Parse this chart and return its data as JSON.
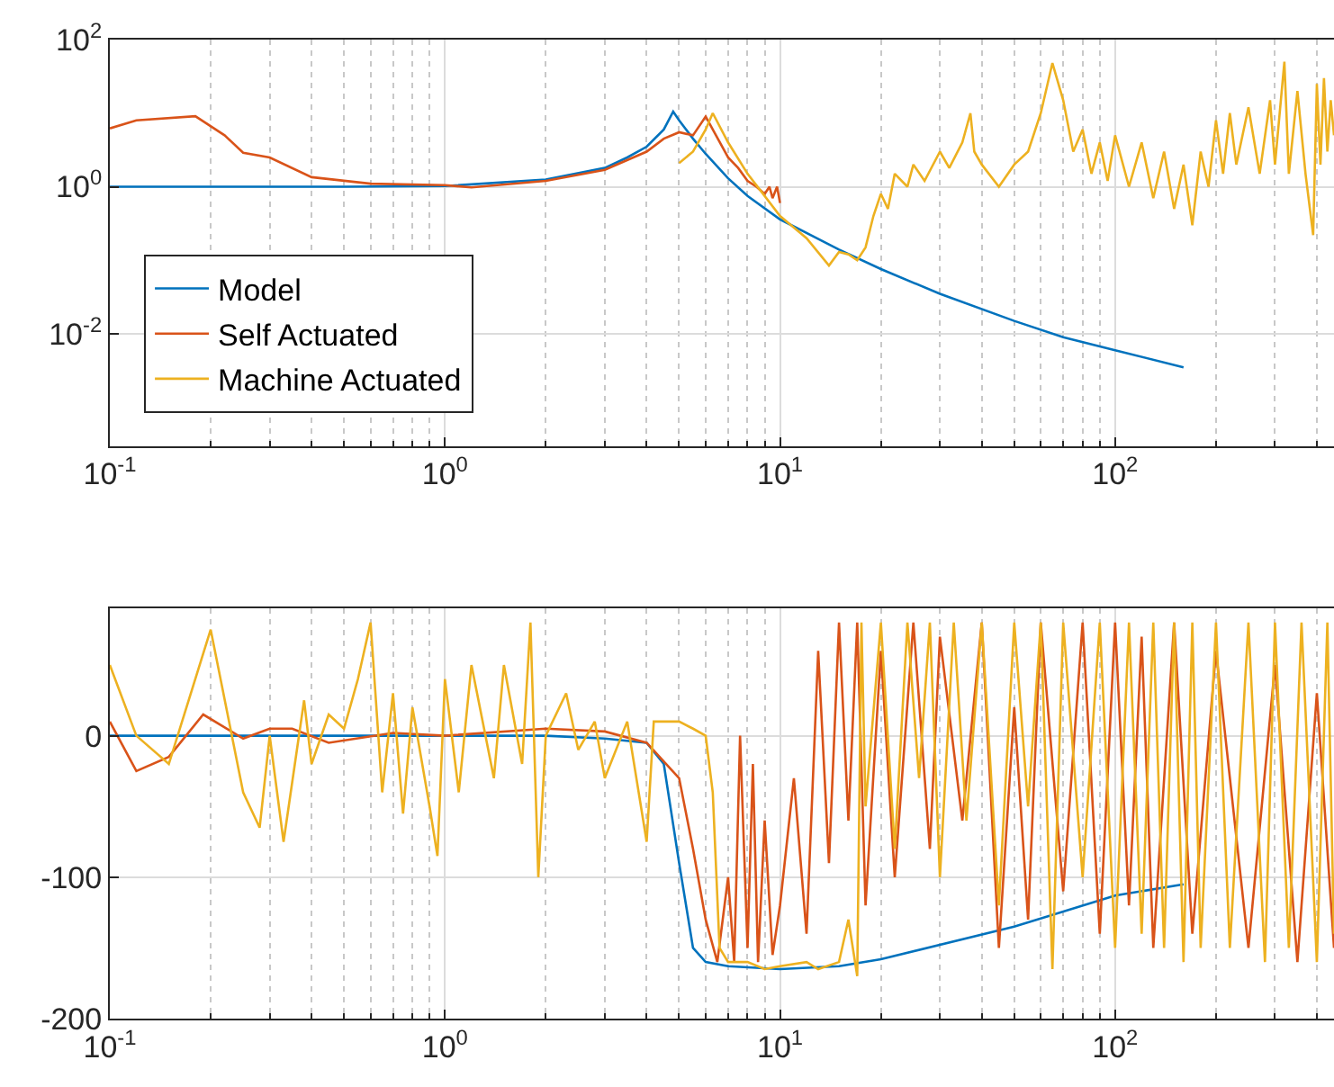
{
  "chart_data": [
    {
      "type": "line",
      "log": "xy",
      "grid": true,
      "legend": "bottom left",
      "xlim": [
        0.1,
        450
      ],
      "xticks": [
        {
          "value": 0.1,
          "label": "10$^{-1}$"
        },
        {
          "value": 1,
          "label": "10$^{0}$"
        },
        {
          "value": 10,
          "label": "10$^{1}$"
        },
        {
          "value": 100,
          "label": "10$^{2}$"
        }
      ],
      "ylim": [
        0.0003,
        100
      ],
      "yticks": [
        {
          "value": 0.01,
          "label": "10$^{-2}$"
        },
        {
          "value": 1,
          "label": "10$^{0}$"
        },
        {
          "value": 100,
          "label": "10$^{2}$"
        }
      ],
      "series": [
        {
          "name": "Model",
          "color": "#0072bd",
          "x": [
            0.1,
            0.5,
            1,
            2,
            3,
            3.5,
            4,
            4.5,
            4.8,
            5,
            5.5,
            6,
            7,
            8,
            10,
            15,
            20,
            30,
            50,
            70,
            100,
            160
          ],
          "values": [
            1,
            1,
            1.02,
            1.25,
            1.8,
            2.5,
            3.5,
            6,
            10.5,
            8,
            4.5,
            2.8,
            1.3,
            0.75,
            0.36,
            0.14,
            0.076,
            0.035,
            0.015,
            0.009,
            0.006,
            0.0035
          ]
        },
        {
          "name": "Self Actuated",
          "color": "#d95319",
          "x": [
            0.1,
            0.12,
            0.18,
            0.22,
            0.25,
            0.3,
            0.4,
            0.6,
            1,
            1.2,
            2,
            3,
            4,
            4.5,
            5,
            5.5,
            6,
            6.3,
            7,
            7.5,
            8,
            8.5,
            9,
            9.3,
            9.5,
            9.8,
            10
          ],
          "values": [
            6.2,
            8,
            9.1,
            5,
            2.9,
            2.5,
            1.35,
            1.1,
            1.05,
            0.98,
            1.2,
            1.7,
            3,
            4.5,
            5.5,
            5,
            9,
            6,
            2.5,
            1.8,
            1.2,
            1.0,
            0.8,
            1.0,
            0.7,
            1.0,
            0.6
          ]
        },
        {
          "name": "Machine Actuated",
          "color": "#edb120",
          "x": [
            5,
            5.5,
            6,
            6.3,
            7,
            8,
            10,
            12,
            14,
            15,
            16,
            17,
            18,
            19,
            20,
            21,
            22,
            24,
            25,
            27,
            30,
            32,
            35,
            37,
            38,
            40,
            45,
            50,
            55,
            60,
            65,
            70,
            75,
            80,
            85,
            90,
            95,
            100,
            110,
            120,
            130,
            140,
            150,
            160,
            170,
            180,
            190,
            200,
            210,
            220,
            230,
            250,
            270,
            290,
            300,
            320,
            330,
            350,
            370,
            390,
            400,
            410,
            420,
            430,
            440,
            450
          ],
          "values": [
            2.1,
            3,
            6,
            10,
            4,
            1.5,
            0.4,
            0.2,
            0.085,
            0.13,
            0.12,
            0.1,
            0.15,
            0.4,
            0.8,
            0.5,
            1.5,
            1,
            2,
            1.2,
            3,
            1.8,
            4,
            10,
            3,
            2,
            1,
            2,
            3,
            10,
            48,
            15,
            3,
            6,
            1.5,
            4,
            1.2,
            5,
            1,
            4,
            0.7,
            3,
            0.5,
            2,
            0.3,
            3,
            1,
            8,
            1.5,
            10,
            2,
            12,
            1.5,
            15,
            2,
            50,
            1.5,
            20,
            1.5,
            0.22,
            25,
            2,
            30,
            3,
            15,
            5
          ]
        }
      ]
    },
    {
      "type": "line",
      "log": "x",
      "grid": true,
      "xlim": [
        0.1,
        450
      ],
      "xticks": [
        {
          "value": 0.1,
          "label": "10$^{-1}$"
        },
        {
          "value": 1,
          "label": "10$^{0}$"
        },
        {
          "value": 10,
          "label": "10$^{1}$"
        },
        {
          "value": 100,
          "label": "10$^{2}$"
        }
      ],
      "ylim": [
        -200,
        90
      ],
      "yticks": [
        -200,
        -100,
        0
      ],
      "series": [
        {
          "color": "#0072bd",
          "x": [
            0.1,
            1,
            2,
            3,
            4,
            4.5,
            5,
            5.5,
            6,
            7,
            10,
            15,
            20,
            50,
            100,
            160
          ],
          "values": [
            0,
            0,
            0,
            -2,
            -5,
            -20,
            -90,
            -150,
            -160,
            -163,
            -165,
            -163,
            -158,
            -135,
            -113,
            -105
          ]
        },
        {
          "color": "#d95319",
          "x": [
            0.1,
            0.12,
            0.15,
            0.19,
            0.25,
            0.3,
            0.35,
            0.45,
            0.7,
            1,
            2,
            3,
            4,
            5,
            5.5,
            6,
            6.5,
            7,
            7.3,
            7.6,
            8,
            8.3,
            8.6,
            9,
            9.5,
            10,
            11,
            12,
            13,
            14,
            15,
            16,
            17,
            18,
            20,
            22,
            25,
            28,
            30,
            35,
            40,
            45,
            50,
            55,
            60,
            70,
            80,
            90,
            100,
            110,
            120,
            130,
            150,
            170,
            200,
            250,
            300,
            350,
            400,
            450
          ],
          "values": [
            10,
            -25,
            -15,
            15,
            -2,
            5,
            5,
            -5,
            2,
            0,
            5,
            3,
            -5,
            -30,
            -80,
            -130,
            -160,
            -100,
            -160,
            0,
            -150,
            -20,
            -160,
            -60,
            -155,
            -120,
            -30,
            -140,
            60,
            -90,
            80,
            -60,
            80,
            -120,
            60,
            -100,
            80,
            -80,
            70,
            -60,
            80,
            -150,
            20,
            -130,
            80,
            -110,
            80,
            -140,
            80,
            -120,
            70,
            -150,
            80,
            -140,
            60,
            -150,
            50,
            -160,
            30,
            -150
          ]
        },
        {
          "color": "#edb120",
          "x": [
            0.1,
            0.12,
            0.15,
            0.2,
            0.25,
            0.28,
            0.3,
            0.33,
            0.38,
            0.4,
            0.45,
            0.5,
            0.55,
            0.6,
            0.65,
            0.7,
            0.75,
            0.8,
            0.9,
            0.95,
            1.0,
            1.1,
            1.2,
            1.4,
            1.5,
            1.7,
            1.8,
            1.9,
            2.0,
            2.3,
            2.5,
            2.8,
            3,
            3.5,
            4,
            4.2,
            5,
            5.5,
            6,
            6.3,
            6.6,
            7,
            8,
            9,
            10,
            12,
            13,
            15,
            16,
            17,
            17.5,
            18,
            20,
            22,
            24,
            26,
            28,
            30,
            33,
            36,
            40,
            45,
            50,
            55,
            60,
            65,
            70,
            80,
            90,
            100,
            110,
            120,
            130,
            140,
            150,
            160,
            170,
            180,
            200,
            220,
            250,
            280,
            300,
            330,
            360,
            400,
            430,
            450
          ],
          "values": [
            50,
            0,
            -20,
            75,
            -40,
            -65,
            0,
            -75,
            25,
            -20,
            15,
            5,
            40,
            80,
            -40,
            30,
            -55,
            20,
            -50,
            -85,
            40,
            -40,
            50,
            -30,
            50,
            -20,
            80,
            -100,
            0,
            30,
            -10,
            10,
            -30,
            10,
            -75,
            10,
            10,
            5,
            0,
            -40,
            -150,
            -160,
            -160,
            -165,
            -163,
            -160,
            -165,
            -160,
            -130,
            -170,
            80,
            -50,
            80,
            -80,
            80,
            -30,
            80,
            -100,
            80,
            -60,
            80,
            -120,
            80,
            -50,
            80,
            -165,
            80,
            -100,
            80,
            -150,
            80,
            -140,
            80,
            -150,
            80,
            -160,
            80,
            -150,
            80,
            -150,
            80,
            -160,
            80,
            -150,
            80,
            -160,
            80,
            -140
          ]
        }
      ]
    }
  ]
}
